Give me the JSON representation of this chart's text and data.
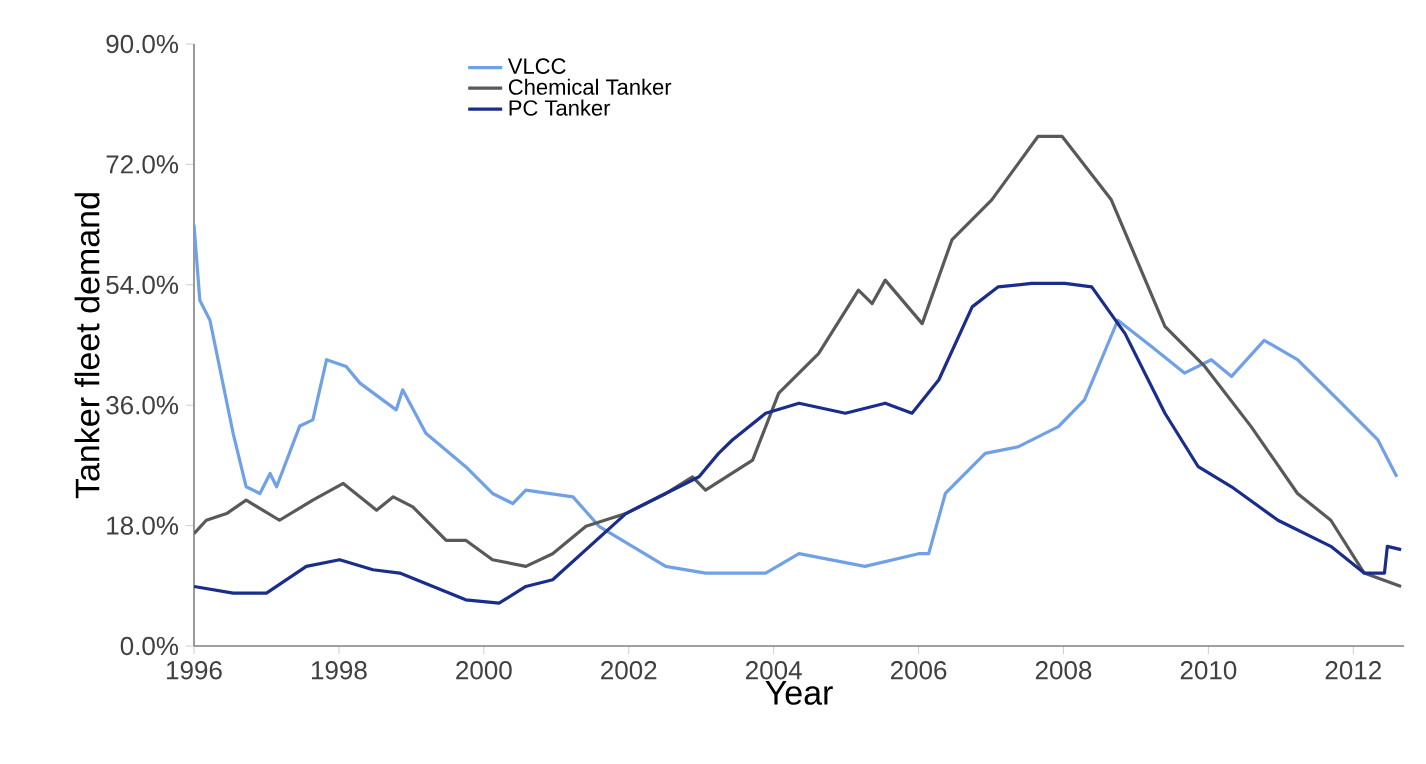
{
  "chart_data": {
    "type": "line",
    "xlabel": "Year",
    "ylabel": "Tanker fleet demand",
    "xlim": [
      1996,
      2012.7
    ],
    "xticks": [
      1996,
      1998,
      2000,
      2002,
      2004,
      2006,
      2008,
      2010,
      2012
    ],
    "ylim": [
      0,
      90
    ],
    "yticks": [
      {
        "value": 0,
        "label": "0.0%"
      },
      {
        "value": 18,
        "label": "18.0%"
      },
      {
        "value": 36,
        "label": "36.0%"
      },
      {
        "value": 54,
        "label": "54.0%"
      },
      {
        "value": 72,
        "label": "72.0%"
      },
      {
        "value": 90,
        "label": "90.0%"
      }
    ],
    "legend": "top left",
    "grid": false,
    "marker": "none",
    "line_style": "solid",
    "series": [
      {
        "name": "VLCC",
        "color": "#6fa0e8",
        "x": [
          1996.0,
          1996.08,
          1996.22,
          1996.54,
          1996.72,
          1996.91,
          1997.05,
          1997.14,
          1997.46,
          1997.64,
          1997.83,
          1998.1,
          1998.29,
          1998.79,
          1998.88,
          1999.2,
          1999.75,
          2000.12,
          2000.4,
          2000.58,
          2001.23,
          2001.59,
          2002.51,
          2003.06,
          2003.89,
          2004.35,
          2005.26,
          2006.0,
          2006.14,
          2006.37,
          2006.92,
          2007.38,
          2007.93,
          2008.29,
          2008.75,
          2009.21,
          2009.67,
          2010.04,
          2010.32,
          2010.77,
          2011.23,
          2011.79,
          2012.34,
          2012.6
        ],
        "values": [
          63,
          51.7,
          48.7,
          31.8,
          23.8,
          22.8,
          25.8,
          23.8,
          32.9,
          33.8,
          42.8,
          41.8,
          39.3,
          35.3,
          38.3,
          31.8,
          26.8,
          22.8,
          21.3,
          23.3,
          22.3,
          17.9,
          11.9,
          10.9,
          10.9,
          13.8,
          11.9,
          13.8,
          13.8,
          22.8,
          28.8,
          29.8,
          32.8,
          36.8,
          48.7,
          44.8,
          40.8,
          42.8,
          40.3,
          45.7,
          42.8,
          36.8,
          30.8,
          25.3
        ]
      },
      {
        "name": "Chemical Tanker",
        "color": "#595959",
        "x": [
          1996.0,
          1996.17,
          1996.45,
          1996.72,
          1997.18,
          1997.64,
          1998.06,
          1998.52,
          1998.75,
          1999.02,
          1999.48,
          1999.75,
          2000.12,
          2000.58,
          2000.95,
          2001.41,
          2001.96,
          2002.51,
          2002.88,
          2003.06,
          2003.71,
          2004.07,
          2004.62,
          2005.17,
          2005.36,
          2005.54,
          2006.05,
          2006.46,
          2007.01,
          2007.65,
          2007.98,
          2008.66,
          2009.4,
          2009.95,
          2010.59,
          2011.23,
          2011.69,
          2012.15,
          2012.66
        ],
        "values": [
          16.8,
          18.8,
          19.8,
          21.8,
          18.8,
          21.8,
          24.3,
          20.3,
          22.3,
          20.8,
          15.8,
          15.8,
          12.9,
          11.9,
          13.8,
          17.9,
          19.8,
          22.8,
          25.3,
          23.3,
          27.8,
          37.8,
          43.7,
          53.2,
          51.2,
          54.7,
          48.2,
          60.7,
          66.7,
          76.2,
          76.2,
          66.7,
          47.8,
          41.8,
          32.8,
          22.8,
          18.8,
          10.9,
          8.9
        ]
      },
      {
        "name": "PC Tanker",
        "color": "#1a2d8c",
        "x": [
          1996.0,
          1996.54,
          1997.0,
          1997.55,
          1998.01,
          1998.47,
          1998.84,
          1999.75,
          2000.21,
          2000.58,
          2000.95,
          2001.96,
          2002.51,
          2002.97,
          2003.24,
          2003.43,
          2003.89,
          2004.35,
          2004.99,
          2005.54,
          2005.91,
          2006.28,
          2006.74,
          2007.1,
          2007.56,
          2008.02,
          2008.39,
          2008.85,
          2009.4,
          2009.86,
          2010.32,
          2010.96,
          2011.69,
          2012.15,
          2012.43,
          2012.47,
          2012.66
        ],
        "values": [
          8.9,
          7.9,
          7.9,
          11.9,
          12.9,
          11.4,
          10.9,
          6.9,
          6.4,
          8.9,
          9.9,
          19.8,
          22.8,
          25.3,
          28.8,
          30.8,
          34.8,
          36.3,
          34.8,
          36.3,
          34.8,
          39.8,
          50.7,
          53.7,
          54.2,
          54.2,
          53.7,
          46.7,
          34.8,
          26.8,
          23.8,
          18.8,
          14.9,
          10.9,
          10.9,
          14.9,
          14.4
        ]
      }
    ]
  }
}
